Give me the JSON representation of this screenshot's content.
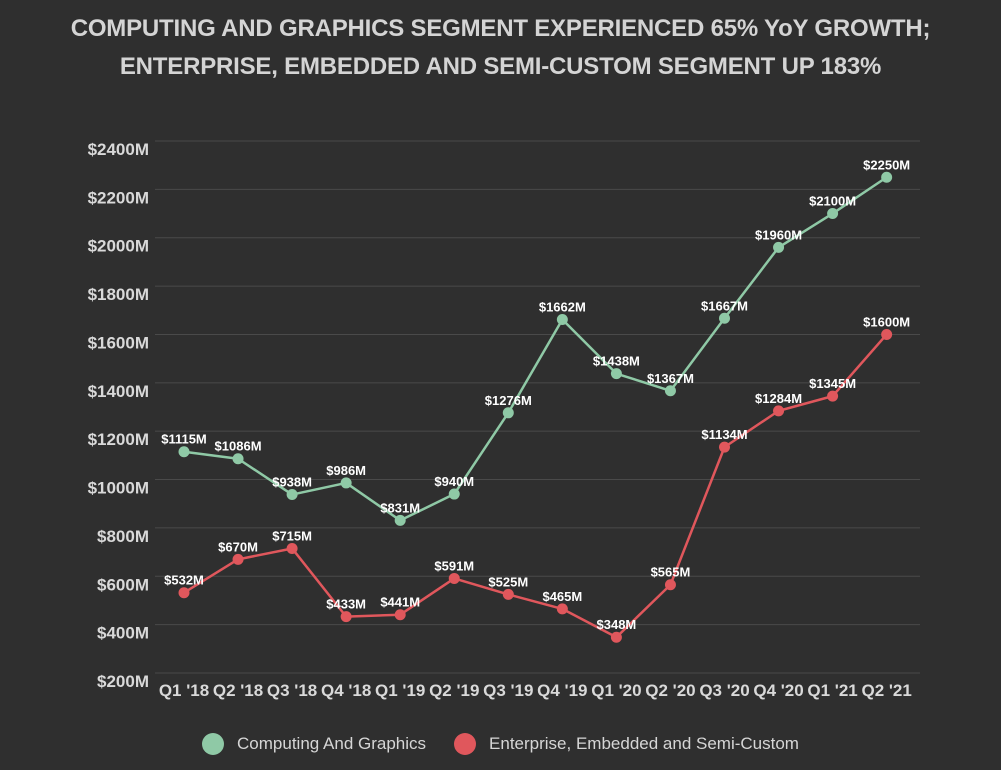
{
  "chart_title": {
    "line1": "COMPUTING AND GRAPHICS SEGMENT EXPERIENCED 65% YoY GROWTH;",
    "line2": "ENTERPRISE, EMBEDDED AND SEMI-CUSTOM SEGMENT UP 183%"
  },
  "colors": {
    "background": "#2f2f2f",
    "grid": "#4a4a4a",
    "computing": "#8fc9a6",
    "enterprise": "#e0575c"
  },
  "chart_data": {
    "type": "line",
    "title": "COMPUTING AND GRAPHICS SEGMENT EXPERIENCED 65% YoY GROWTH; ENTERPRISE, EMBEDDED AND SEMI-CUSTOM SEGMENT UP 183%",
    "xlabel": "",
    "ylabel": "",
    "categories": [
      "Q1 '18",
      "Q2 '18",
      "Q3 '18",
      "Q4 '18",
      "Q1 '19",
      "Q2 '19",
      "Q3 '19",
      "Q4 '19",
      "Q1 '20",
      "Q2 '20",
      "Q3 '20",
      "Q4 '20",
      "Q1 '21",
      "Q2 '21"
    ],
    "ylim": [
      200,
      2400
    ],
    "yticks": [
      200,
      400,
      600,
      800,
      1000,
      1200,
      1400,
      1600,
      1800,
      2000,
      2200,
      2400
    ],
    "ytick_labels": [
      "$200M",
      "$400M",
      "$600M",
      "$800M",
      "$1000M",
      "$1200M",
      "$1400M",
      "$1600M",
      "$1800M",
      "$2000M",
      "$2200M",
      "$2400M"
    ],
    "grid": true,
    "legend_position": "bottom",
    "series": [
      {
        "name": "Computing And Graphics",
        "color": "#8fc9a6",
        "values": [
          1115,
          1086,
          938,
          986,
          831,
          940,
          1276,
          1662,
          1438,
          1367,
          1667,
          1960,
          2100,
          2250
        ],
        "labels": [
          "$1115M",
          "$1086M",
          "$938M",
          "$986M",
          "$831M",
          "$940M",
          "$1276M",
          "$1662M",
          "$1438M",
          "$1367M",
          "$1667M",
          "$1960M",
          "$2100M",
          "$2250M"
        ]
      },
      {
        "name": "Enterprise, Embedded and Semi-Custom",
        "color": "#e0575c",
        "values": [
          532,
          670,
          715,
          433,
          441,
          591,
          525,
          465,
          348,
          565,
          1134,
          1284,
          1345,
          1600
        ],
        "labels": [
          "$532M",
          "$670M",
          "$715M",
          "$433M",
          "$441M",
          "$591M",
          "$525M",
          "$465M",
          "$348M",
          "$565M",
          "$1134M",
          "$1284M",
          "$1345M",
          "$1600M"
        ]
      }
    ]
  }
}
